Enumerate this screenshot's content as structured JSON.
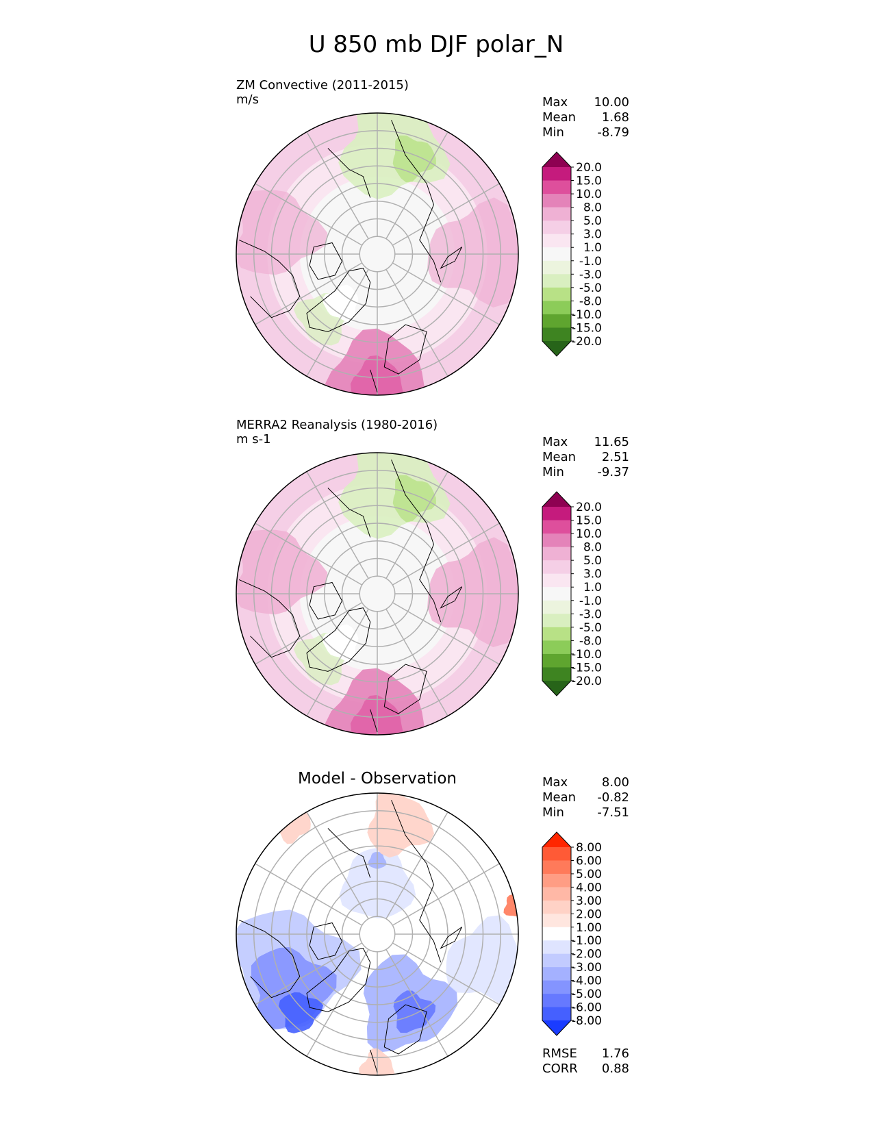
{
  "figure_title": "U 850 mb DJF polar_N",
  "chart_data": [
    {
      "type": "heatmap",
      "projection": "north-polar-stereographic",
      "title": "ZM Convective (2011-2015)",
      "units": "m/s",
      "stats": [
        {
          "label": "Max",
          "value": "10.00"
        },
        {
          "label": "Mean",
          "value": "1.68"
        },
        {
          "label": "Min",
          "value": "-8.79"
        }
      ],
      "colorbar": {
        "levels": [
          "20.0",
          "15.0",
          "10.0",
          "8.0",
          "5.0",
          "3.0",
          "1.0",
          "-1.0",
          "-3.0",
          "-5.0",
          "-8.0",
          "-10.0",
          "-15.0",
          "-20.0"
        ],
        "colors": [
          "#8e0152",
          "#c51b7d",
          "#de4f9c",
          "#e483b9",
          "#efb1d4",
          "#f5cfe6",
          "#fae6f1",
          "#f7f7f7",
          "#ecf4de",
          "#d9efc0",
          "#b8e186",
          "#8ccc59",
          "#5fa52f",
          "#3e8421",
          "#276419"
        ]
      }
    },
    {
      "type": "heatmap",
      "projection": "north-polar-stereographic",
      "title": "MERRA2 Reanalysis (1980-2016)",
      "units": "m s-1",
      "stats": [
        {
          "label": "Max",
          "value": "11.65"
        },
        {
          "label": "Mean",
          "value": "2.51"
        },
        {
          "label": "Min",
          "value": "-9.37"
        }
      ],
      "colorbar": {
        "levels": [
          "20.0",
          "15.0",
          "10.0",
          "8.0",
          "5.0",
          "3.0",
          "1.0",
          "-1.0",
          "-3.0",
          "-5.0",
          "-8.0",
          "-10.0",
          "-15.0",
          "-20.0"
        ],
        "colors": [
          "#8e0152",
          "#c51b7d",
          "#de4f9c",
          "#e483b9",
          "#efb1d4",
          "#f5cfe6",
          "#fae6f1",
          "#f7f7f7",
          "#ecf4de",
          "#d9efc0",
          "#b8e186",
          "#8ccc59",
          "#5fa52f",
          "#3e8421",
          "#276419"
        ]
      }
    },
    {
      "type": "heatmap",
      "projection": "north-polar-stereographic",
      "title": "Model - Observation",
      "units": "",
      "stats": [
        {
          "label": "Max",
          "value": "8.00"
        },
        {
          "label": "Mean",
          "value": "-0.82"
        },
        {
          "label": "Min",
          "value": "-7.51"
        }
      ],
      "metrics": [
        {
          "label": "RMSE",
          "value": "1.76"
        },
        {
          "label": "CORR",
          "value": "0.88"
        }
      ],
      "colorbar": {
        "levels": [
          "8.00",
          "6.00",
          "5.00",
          "4.00",
          "3.00",
          "2.00",
          "1.00",
          "-1.00",
          "-2.00",
          "-3.00",
          "-4.00",
          "-5.00",
          "-6.00",
          "-8.00"
        ],
        "colors": [
          "#ff2600",
          "#ff5a36",
          "#ff7a5a",
          "#ff9d84",
          "#ffb8a6",
          "#ffd2c6",
          "#ffe6df",
          "#ffffff",
          "#dfe4ff",
          "#c2cbff",
          "#a4b1ff",
          "#8494ff",
          "#6679ff",
          "#4560ff",
          "#1a3cff"
        ]
      }
    }
  ]
}
